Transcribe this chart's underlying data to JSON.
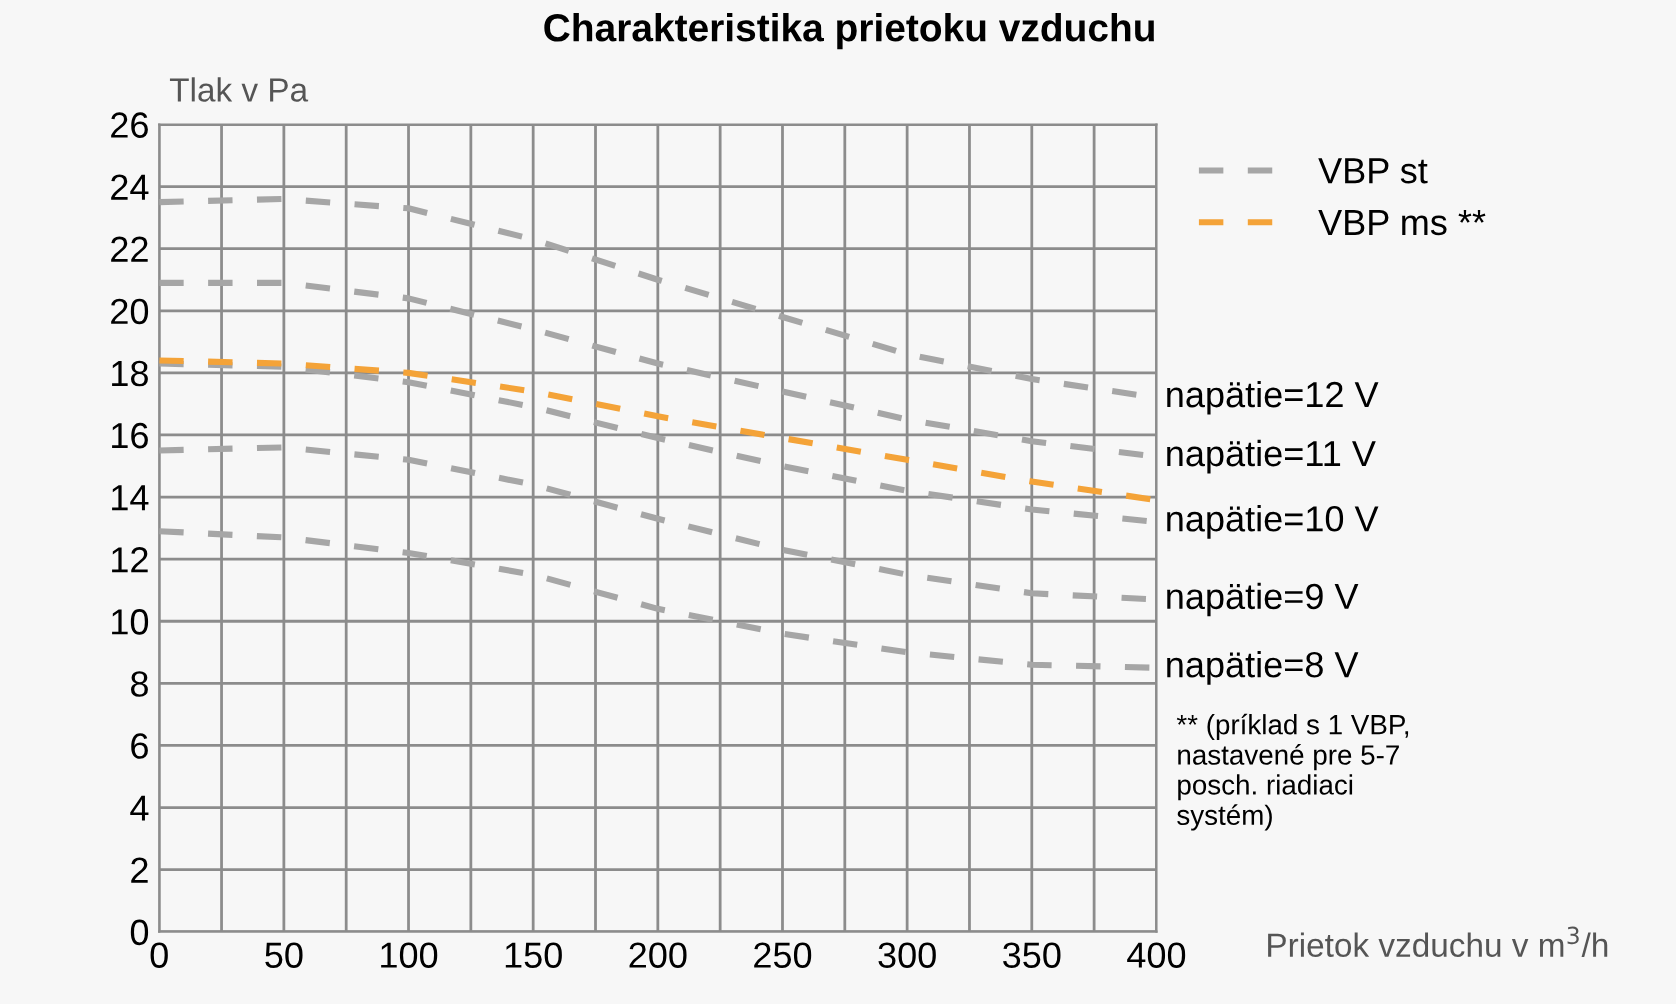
{
  "chart_data": {
    "type": "line",
    "title": "Charakteristika prietoku vzduchu",
    "xlabel": "Prietok vzduchu v m$^{3}$/h",
    "ylabel": "Tlak v Pa",
    "x": [
      0,
      50,
      100,
      150,
      200,
      250,
      300,
      350,
      400
    ],
    "series": [
      {
        "name": "VBP st",
        "color": "#a6a6a6",
        "line_style": "dashed",
        "values": [
          23.5,
          23.6,
          23.3,
          22.3,
          21.0,
          19.8,
          18.6,
          17.8,
          17.2
        ]
      },
      {
        "color": "#a6a6a6",
        "line_style": "dashed",
        "values": [
          20.9,
          20.9,
          20.4,
          19.4,
          18.3,
          17.4,
          16.5,
          15.8,
          15.3
        ]
      },
      {
        "color": "#a6a6a6",
        "line_style": "dashed",
        "values": [
          18.3,
          18.2,
          17.7,
          16.9,
          15.9,
          15.0,
          14.2,
          13.6,
          13.2
        ]
      },
      {
        "color": "#a6a6a6",
        "line_style": "dashed",
        "values": [
          15.5,
          15.6,
          15.2,
          14.4,
          13.3,
          12.3,
          11.5,
          10.9,
          10.7
        ]
      },
      {
        "color": "#a6a6a6",
        "line_style": "dashed",
        "values": [
          12.9,
          12.7,
          12.2,
          11.5,
          10.4,
          9.6,
          9.0,
          8.6,
          8.5
        ]
      },
      {
        "name": "VBP ms **",
        "color": "#f4a338",
        "line_style": "dashed",
        "values": [
          18.4,
          18.3,
          18.0,
          17.4,
          16.6,
          15.9,
          15.2,
          14.5,
          13.9
        ]
      }
    ],
    "xlim": [
      0,
      400
    ],
    "xticks": [
      0,
      50,
      100,
      150,
      200,
      250,
      300,
      350,
      400
    ],
    "ylim": [
      0,
      26
    ],
    "yticks": [
      0,
      2,
      4,
      6,
      8,
      10,
      12,
      14,
      16,
      18,
      20,
      22,
      24,
      26
    ],
    "grid": true,
    "legend": "top right",
    "marker": "none",
    "annotations": [
      "napätie=12 V",
      "napätie=11 V",
      "napätie=10 V",
      "napätie=9 V",
      "napätie=8 V",
      "** (príklad s 1 VBP,\nnastavené pre 5-7\nposch. riadiaci\nsystém)"
    ]
  }
}
